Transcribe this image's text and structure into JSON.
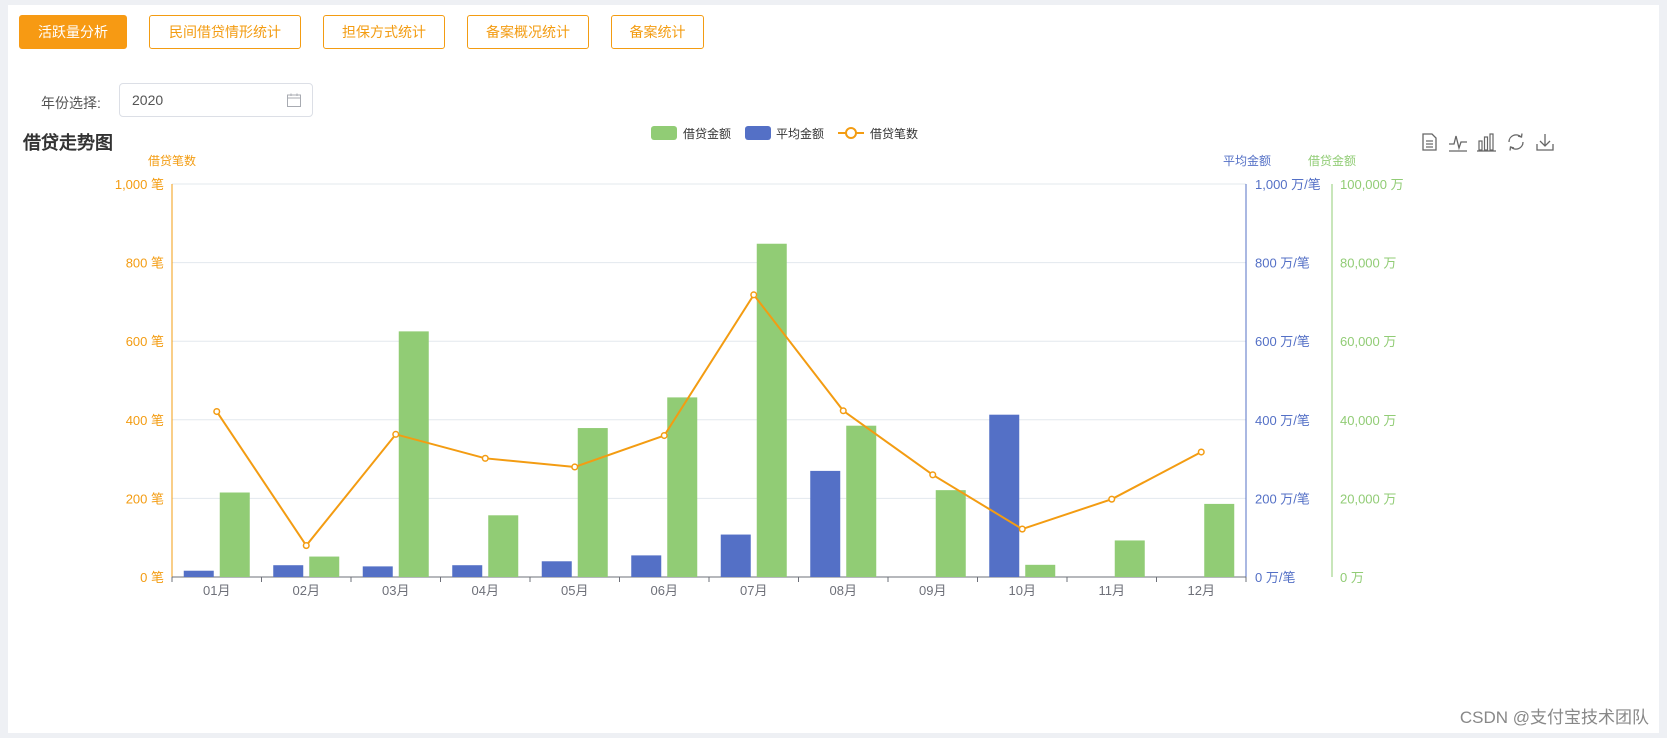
{
  "tabs": [
    {
      "label": "活跃量分析",
      "active": true
    },
    {
      "label": "民间借贷情形统计",
      "active": false
    },
    {
      "label": "担保方式统计",
      "active": false
    },
    {
      "label": "备案概况统计",
      "active": false
    },
    {
      "label": "备案统计",
      "active": false
    }
  ],
  "filter": {
    "label": "年份选择:",
    "value": "2020"
  },
  "watermark": "CSDN @支付宝技术团队",
  "icons": {
    "calendar": "calendar-icon",
    "tools": [
      "data-view-icon",
      "line-switch-icon",
      "bar-switch-icon",
      "restore-icon",
      "download-icon"
    ]
  },
  "colors": {
    "accent": "#f79a13",
    "count": "#f39c12",
    "avg": "#5470c6",
    "amount": "#91cc75"
  },
  "chart_data": {
    "type": "bar",
    "title": "借贷走势图",
    "legend": [
      "借贷金额",
      "平均金额",
      "借贷笔数"
    ],
    "legend_position": "top-center",
    "grid": true,
    "categories": [
      "01月",
      "02月",
      "03月",
      "04月",
      "05月",
      "06月",
      "07月",
      "08月",
      "09月",
      "10月",
      "11月",
      "12月"
    ],
    "axes": {
      "count": {
        "name": "借贷笔数",
        "unit": "笔",
        "ticks": [
          "0 笔",
          "200 笔",
          "400 笔",
          "600 笔",
          "800 笔",
          "1,000 笔"
        ],
        "ylim": [
          0,
          1000
        ]
      },
      "avg": {
        "name": "平均金额",
        "unit": "万/笔",
        "ticks": [
          "0 万/笔",
          "200 万/笔",
          "400 万/笔",
          "600 万/笔",
          "800 万/笔",
          "1,000 万/笔"
        ],
        "ylim": [
          0,
          1000
        ]
      },
      "amount": {
        "name": "借贷金额",
        "unit": "万",
        "ticks": [
          "0 万",
          "20,000 万",
          "40,000 万",
          "60,000 万",
          "80,000 万",
          "100,000 万"
        ],
        "ylim": [
          0,
          100000
        ]
      }
    },
    "series": [
      {
        "name": "平均金额",
        "type": "bar",
        "axis": "avg",
        "values": [
          16,
          30,
          27,
          30,
          40,
          55,
          108,
          270,
          0,
          413,
          0,
          0
        ]
      },
      {
        "name": "借贷金额",
        "type": "bar",
        "axis": "amount",
        "values": [
          21500,
          5200,
          62500,
          15700,
          37900,
          45700,
          84800,
          38500,
          22100,
          3100,
          9300,
          18600
        ]
      },
      {
        "name": "借贷笔数",
        "type": "line",
        "axis": "count",
        "values": [
          421,
          80,
          363,
          302,
          280,
          360,
          718,
          423,
          260,
          122,
          198,
          318
        ]
      }
    ]
  }
}
